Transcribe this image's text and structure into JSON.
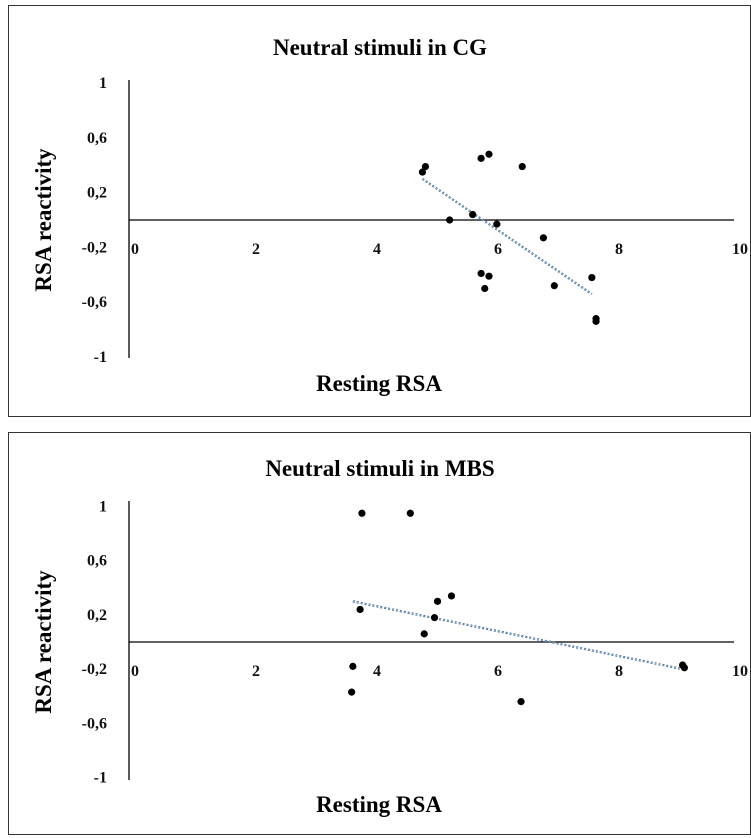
{
  "chart_data": [
    {
      "type": "scatter",
      "title": "Neutral stimuli in CG",
      "xlabel": "Resting RSA",
      "ylabel": "RSA reactivity",
      "xlim": [
        0,
        10
      ],
      "ylim": [
        -1,
        1
      ],
      "xticks": [
        "0",
        "2",
        "4",
        "6",
        "8",
        "10"
      ],
      "yticks": [
        "1",
        "0,6",
        "0,2",
        "-0,2",
        "-0,6",
        "-1"
      ],
      "grid": false,
      "legend": "none",
      "trendline": {
        "style": "dotted",
        "color": "#2c5b8c",
        "x": [
          4.85,
          7.65
        ],
        "y": [
          0.3,
          -0.54
        ]
      },
      "points": [
        {
          "x": 4.85,
          "y": 0.35
        },
        {
          "x": 4.9,
          "y": 0.39
        },
        {
          "x": 5.3,
          "y": 0.0
        },
        {
          "x": 5.68,
          "y": 0.04
        },
        {
          "x": 5.82,
          "y": 0.45
        },
        {
          "x": 5.95,
          "y": 0.48
        },
        {
          "x": 6.08,
          "y": -0.03
        },
        {
          "x": 6.5,
          "y": 0.39
        },
        {
          "x": 6.85,
          "y": -0.13
        },
        {
          "x": 5.82,
          "y": -0.39
        },
        {
          "x": 5.88,
          "y": -0.5
        },
        {
          "x": 5.95,
          "y": -0.41
        },
        {
          "x": 7.03,
          "y": -0.48
        },
        {
          "x": 7.65,
          "y": -0.42
        },
        {
          "x": 7.72,
          "y": -0.72
        },
        {
          "x": 7.72,
          "y": -0.74
        }
      ]
    },
    {
      "type": "scatter",
      "title": "Neutral stimuli in MBS",
      "xlabel": "Resting RSA",
      "ylabel": "RSA reactivity",
      "xlim": [
        0,
        10
      ],
      "ylim": [
        -1,
        1
      ],
      "xticks": [
        "0",
        "2",
        "4",
        "6",
        "8",
        "10"
      ],
      "yticks": [
        "1",
        "0,6",
        "0,2",
        "-0,2",
        "-0,6",
        "-1"
      ],
      "grid": false,
      "legend": "none",
      "trendline": {
        "style": "dotted",
        "color": "#2c5b8c",
        "x": [
          3.7,
          9.15
        ],
        "y": [
          0.3,
          -0.2
        ]
      },
      "points": [
        {
          "x": 3.85,
          "y": 0.95
        },
        {
          "x": 4.65,
          "y": 0.95
        },
        {
          "x": 3.82,
          "y": 0.24
        },
        {
          "x": 3.7,
          "y": -0.18
        },
        {
          "x": 3.68,
          "y": -0.37
        },
        {
          "x": 4.88,
          "y": 0.06
        },
        {
          "x": 5.05,
          "y": 0.18
        },
        {
          "x": 5.1,
          "y": 0.3
        },
        {
          "x": 5.33,
          "y": 0.34
        },
        {
          "x": 6.48,
          "y": -0.44
        },
        {
          "x": 9.15,
          "y": -0.17
        },
        {
          "x": 9.18,
          "y": -0.19
        }
      ]
    }
  ]
}
